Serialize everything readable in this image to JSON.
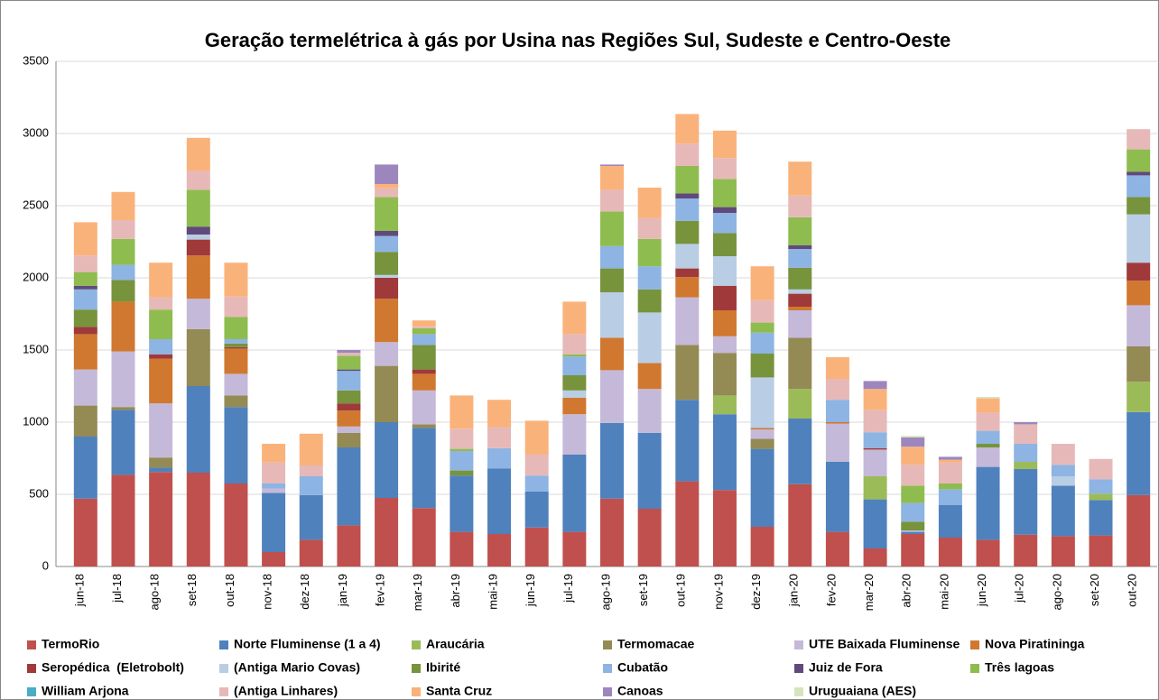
{
  "chart_data": {
    "type": "stacked-bar",
    "title": "Geração termelétrica à gás por Usina nas Regiões Sul, Sudeste e Centro-Oeste",
    "categories": [
      "jun-18",
      "jul-18",
      "ago-18",
      "set-18",
      "out-18",
      "nov-18",
      "dez-18",
      "jan-19",
      "fev-19",
      "mar-19",
      "abr-19",
      "mai-19",
      "jun-19",
      "jul-19",
      "ago-19",
      "set-19",
      "out-19",
      "nov-19",
      "dez-19",
      "jan-20",
      "fev-20",
      "mar-20",
      "abr-20",
      "mai-20",
      "jun-20",
      "jul-20",
      "ago-20",
      "set-20",
      "out-20"
    ],
    "ylim": [
      0,
      3500
    ],
    "yticks": [
      0,
      500,
      1000,
      1500,
      2000,
      2500,
      3000,
      3500
    ],
    "grid": true,
    "legend": "bottom",
    "series": [
      {
        "name": "TermoRio",
        "color": "#c0504d",
        "values": [
          470,
          635,
          655,
          650,
          575,
          100,
          185,
          285,
          475,
          405,
          240,
          225,
          270,
          240,
          470,
          400,
          590,
          530,
          275,
          570,
          240,
          125,
          225,
          200,
          185,
          220,
          210,
          215,
          495
        ]
      },
      {
        "name": "Norte Fluminense (1 a 4)",
        "color": "#4f81bd",
        "values": [
          430,
          450,
          30,
          600,
          530,
          410,
          310,
          540,
          525,
          555,
          390,
          455,
          250,
          535,
          525,
          525,
          565,
          525,
          540,
          455,
          485,
          340,
          15,
          225,
          505,
          455,
          350,
          245,
          575
        ]
      },
      {
        "name": "Araucária",
        "color": "#9bbb59",
        "values": [
          0,
          0,
          0,
          0,
          0,
          0,
          0,
          0,
          0,
          0,
          0,
          0,
          0,
          0,
          0,
          0,
          0,
          130,
          0,
          205,
          0,
          160,
          0,
          0,
          0,
          50,
          0,
          45,
          210
        ]
      },
      {
        "name": "Termomacae",
        "color": "#948a54",
        "values": [
          215,
          20,
          70,
          395,
          80,
          0,
          0,
          100,
          390,
          25,
          0,
          0,
          0,
          0,
          0,
          0,
          380,
          295,
          70,
          355,
          0,
          0,
          0,
          0,
          0,
          0,
          0,
          0,
          245
        ]
      },
      {
        "name": "UTE Baixada Fluminense",
        "color": "#c5b9d9",
        "values": [
          250,
          385,
          375,
          210,
          150,
          30,
          0,
          45,
          165,
          235,
          0,
          0,
          0,
          280,
          365,
          305,
          330,
          115,
          65,
          190,
          265,
          185,
          10,
          0,
          135,
          0,
          0,
          0,
          285
        ]
      },
      {
        "name": "Nova Piratininga",
        "color": "#d0782f",
        "values": [
          245,
          345,
          310,
          300,
          175,
          0,
          0,
          110,
          300,
          115,
          0,
          0,
          0,
          115,
          225,
          180,
          140,
          180,
          10,
          25,
          10,
          0,
          0,
          0,
          0,
          0,
          0,
          0,
          170
        ]
      },
      {
        "name": "Seropédica  (Eletrobolt)",
        "color": "#a0393a",
        "values": [
          50,
          0,
          30,
          110,
          10,
          0,
          0,
          50,
          145,
          30,
          0,
          0,
          0,
          0,
          0,
          0,
          60,
          170,
          0,
          90,
          0,
          10,
          0,
          0,
          0,
          0,
          0,
          0,
          125
        ]
      },
      {
        "name": "(Antiga Mario Covas)",
        "color": "#b9cde5",
        "values": [
          0,
          0,
          0,
          35,
          0,
          0,
          0,
          0,
          20,
          0,
          0,
          0,
          0,
          50,
          315,
          350,
          170,
          205,
          350,
          30,
          0,
          0,
          0,
          0,
          0,
          0,
          65,
          0,
          335
        ]
      },
      {
        "name": "Ibirité",
        "color": "#77933c",
        "values": [
          120,
          150,
          0,
          0,
          25,
          0,
          0,
          90,
          160,
          170,
          35,
          0,
          0,
          105,
          165,
          160,
          160,
          160,
          165,
          150,
          0,
          0,
          60,
          0,
          25,
          0,
          0,
          0,
          120
        ]
      },
      {
        "name": "Cubatão",
        "color": "#8db4e2",
        "values": [
          140,
          105,
          105,
          0,
          30,
          35,
          130,
          135,
          110,
          75,
          135,
          140,
          110,
          130,
          155,
          160,
          155,
          140,
          145,
          130,
          155,
          110,
          130,
          110,
          90,
          125,
          80,
          100,
          150
        ]
      },
      {
        "name": "Juiz de Fora",
        "color": "#604a7b",
        "values": [
          25,
          0,
          0,
          55,
          0,
          0,
          0,
          10,
          35,
          0,
          0,
          0,
          0,
          0,
          0,
          0,
          35,
          40,
          0,
          25,
          0,
          0,
          0,
          0,
          0,
          0,
          0,
          0,
          25
        ]
      },
      {
        "name": "Três lagoas",
        "color": "#8fbc4f",
        "values": [
          95,
          180,
          205,
          255,
          155,
          0,
          0,
          95,
          235,
          40,
          15,
          0,
          0,
          15,
          240,
          190,
          190,
          195,
          70,
          195,
          0,
          0,
          120,
          40,
          0,
          0,
          0,
          0,
          155
        ]
      },
      {
        "name": "William Arjona",
        "color": "#4bacc6",
        "values": [
          0,
          0,
          0,
          0,
          0,
          0,
          0,
          0,
          0,
          0,
          0,
          0,
          0,
          0,
          0,
          0,
          0,
          0,
          0,
          0,
          0,
          0,
          0,
          0,
          0,
          0,
          0,
          0,
          0
        ]
      },
      {
        "name": "(Antiga Linhares)",
        "color": "#e6b9b8",
        "values": [
          115,
          130,
          85,
          130,
          140,
          145,
          75,
          20,
          60,
          15,
          140,
          145,
          145,
          140,
          150,
          145,
          155,
          145,
          155,
          150,
          145,
          155,
          145,
          145,
          125,
          135,
          145,
          140,
          140
        ]
      },
      {
        "name": "Santa Cruz",
        "color": "#fab27b",
        "values": [
          230,
          195,
          240,
          230,
          235,
          130,
          220,
          0,
          30,
          40,
          230,
          190,
          235,
          225,
          165,
          210,
          205,
          190,
          235,
          235,
          150,
          145,
          125,
          20,
          100,
          0,
          0,
          0,
          0
        ]
      },
      {
        "name": "Canoas",
        "color": "#9d86bd",
        "values": [
          0,
          0,
          0,
          0,
          0,
          0,
          0,
          20,
          135,
          0,
          0,
          0,
          0,
          0,
          10,
          0,
          0,
          0,
          0,
          0,
          0,
          55,
          65,
          20,
          0,
          15,
          0,
          0,
          0
        ]
      },
      {
        "name": "Uruguaiana (AES)",
        "color": "#d7e4bd",
        "values": [
          0,
          0,
          0,
          0,
          0,
          0,
          0,
          0,
          0,
          0,
          0,
          0,
          0,
          0,
          0,
          0,
          0,
          0,
          0,
          0,
          0,
          0,
          10,
          0,
          10,
          0,
          0,
          0,
          0
        ]
      }
    ]
  }
}
